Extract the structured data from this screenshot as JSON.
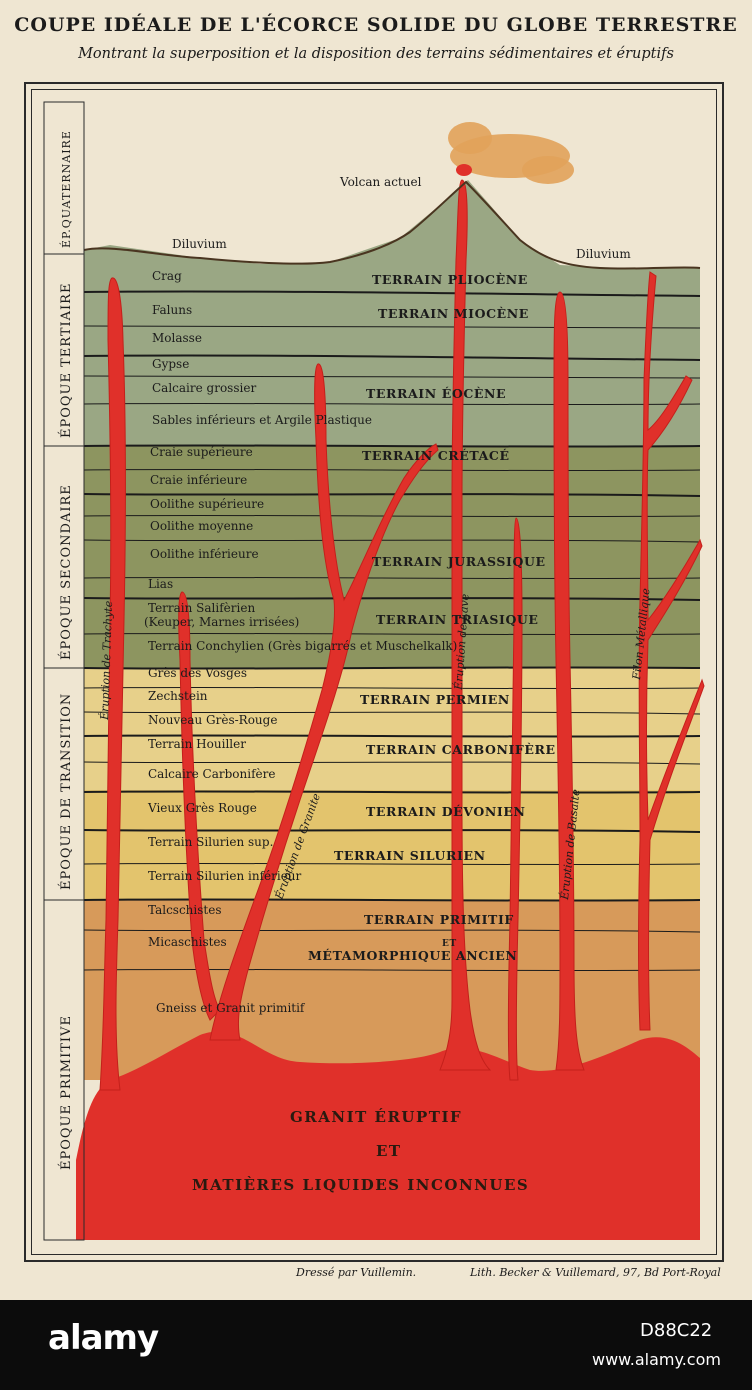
{
  "title": "COUPE IDÉALE DE L'ÉCORCE SOLIDE DU GLOBE TERRESTRE",
  "subtitle": "Montrant la superposition et la disposition des terrains sédimentaires et éruptifs",
  "annotations": {
    "volcano": "Volcan actuel",
    "diluvium_left": "Diluvium",
    "diluvium_right": "Diluvium"
  },
  "epochs": [
    "ÉPOQUE PRIMITIVE",
    "ÉPOQUE DE TRANSITION",
    "ÉPOQUE SECONDAIRE",
    "ÉPOQUE TERTIAIRE",
    "ÉP.QUATERNAIRE"
  ],
  "layers": [
    "Crag",
    "Faluns",
    "Molasse",
    "Gypse",
    "Calcaire grossier",
    "Sables inférieurs et Argile Plastique",
    "Craie supérieure",
    "Craie inférieure",
    "Oolithe supérieure",
    "Oolithe moyenne",
    "Oolithe inférieure",
    "Lias",
    "Terrain Salifèrien",
    "(Keuper, Marnes irrisées)",
    "Terrain Conchylien (Grès bigarrés et Muschelkalk)",
    "Grès des Vosges",
    "Zechstein",
    "Nouveau Grès-Rouge",
    "Terrain Houiller",
    "Calcaire Carbonifère",
    "Vieux Grès Rouge",
    "Terrain Silurien sup.",
    "Terrain Silurien inférieur",
    "Talcschistes",
    "Micaschistes",
    "Gneiss et Granit primitif"
  ],
  "terrains": [
    "TERRAIN PLIOCÈNE",
    "TERRAIN MIOCÈNE",
    "TERRAIN ÉOCÈNE",
    "TERRAIN CRÉTACÉ",
    "TERRAIN JURASSIQUE",
    "TERRAIN TRIASIQUE",
    "TERRAIN PERMIEN",
    "TERRAIN CARBONIFÈRE",
    "TERRAIN DÉVONIEN",
    "TERRAIN SILURIEN",
    "TERRAIN PRIMITIF",
    "ET",
    "MÉTAMORPHIQUE ANCIEN"
  ],
  "veins": [
    "Éruption de Trachyte",
    "Éruption de Granite",
    "Éruption de Lave",
    "Éruption de Basalte",
    "Filon Métallique"
  ],
  "base": {
    "line1": "GRANIT ÉRUPTIF",
    "line2": "ET",
    "line3": "MATIÈRES LIQUIDES INCONNUES"
  },
  "credits": {
    "left": "Dressé par Vuillemin.",
    "right": "Lith. Becker & Vuillemard, 97, Bd Port-Royal"
  },
  "watermark": {
    "brand": "alamy",
    "image_id": "D88C22",
    "url": "www.alamy.com"
  },
  "colors": {
    "paper": "#efe6d2",
    "tertiary": "#9aa784",
    "secondary": "#8d9560",
    "transition": "#e7d08a",
    "primitive": "#d79a5a",
    "eruptive": "#e0302a"
  }
}
